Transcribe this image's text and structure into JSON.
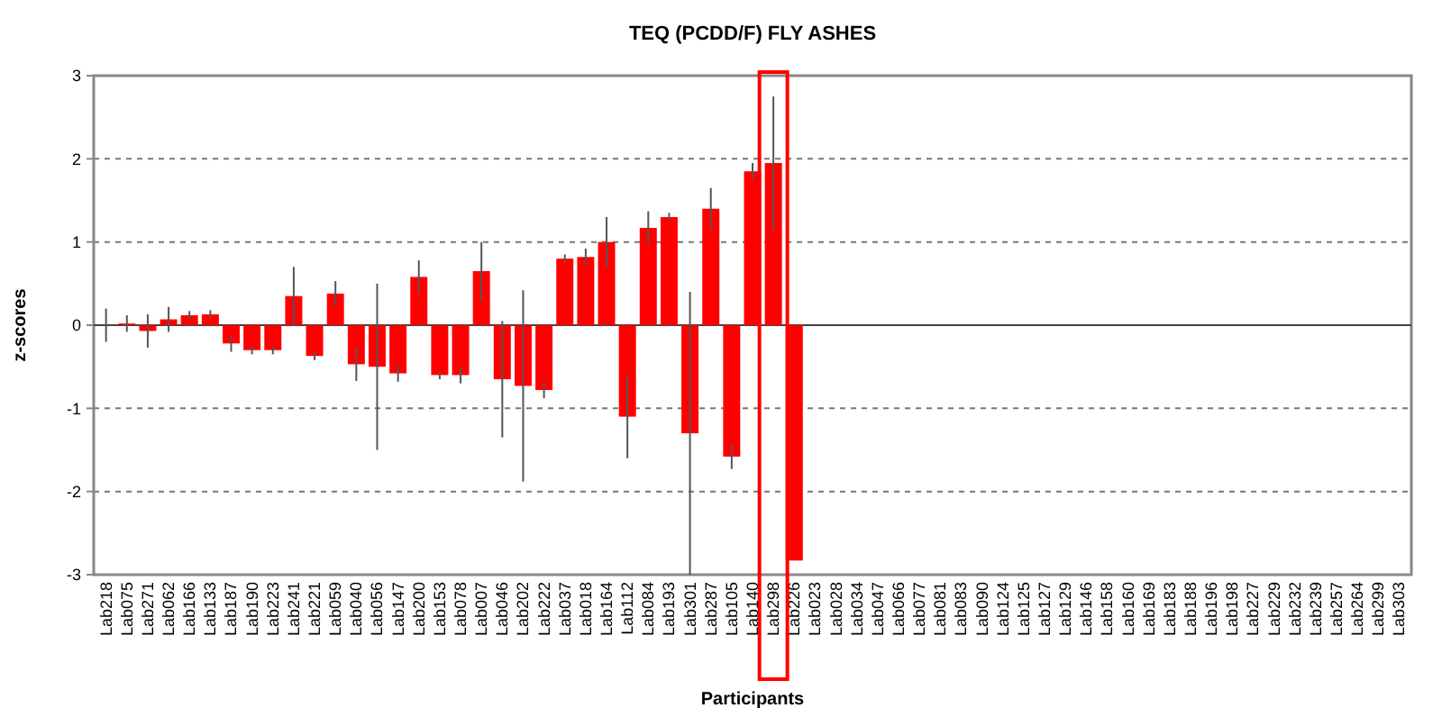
{
  "chart_data": {
    "type": "bar",
    "title": "TEQ (PCDD/F) FLY ASHES",
    "xlabel": "Participants",
    "ylabel": "z-scores",
    "categories": [
      "Lab218",
      "Lab075",
      "Lab271",
      "Lab062",
      "Lab166",
      "Lab133",
      "Lab187",
      "Lab190",
      "Lab223",
      "Lab241",
      "Lab221",
      "Lab059",
      "Lab040",
      "Lab056",
      "Lab147",
      "Lab200",
      "Lab153",
      "Lab078",
      "Lab007",
      "Lab046",
      "Lab202",
      "Lab222",
      "Lab037",
      "Lab018",
      "Lab164",
      "Lab112",
      "Lab084",
      "Lab193",
      "Lab301",
      "Lab287",
      "Lab105",
      "Lab140",
      "Lab298",
      "Lab226",
      "Lab023",
      "Lab028",
      "Lab034",
      "Lab047",
      "Lab066",
      "Lab077",
      "Lab081",
      "Lab083",
      "Lab090",
      "Lab124",
      "Lab125",
      "Lab127",
      "Lab129",
      "Lab146",
      "Lab158",
      "Lab160",
      "Lab169",
      "Lab183",
      "Lab188",
      "Lab196",
      "Lab198",
      "Lab227",
      "Lab229",
      "Lab232",
      "Lab239",
      "Lab257",
      "Lab264",
      "Lab299",
      "Lab303"
    ],
    "series": [
      {
        "color": "#ff0000",
        "values": [
          0.0,
          0.02,
          -0.07,
          0.07,
          0.12,
          0.13,
          -0.22,
          -0.3,
          -0.3,
          0.35,
          -0.37,
          0.38,
          -0.47,
          -0.5,
          -0.58,
          0.58,
          -0.6,
          -0.6,
          0.65,
          -0.65,
          -0.73,
          -0.78,
          0.8,
          0.82,
          1.0,
          -1.1,
          1.17,
          1.3,
          -1.3,
          1.4,
          -1.58,
          1.85,
          1.95,
          -2.83,
          null,
          null,
          null,
          null,
          null,
          null,
          null,
          null,
          null,
          null,
          null,
          null,
          null,
          null,
          null,
          null,
          null,
          null,
          null,
          null,
          null,
          null,
          null,
          null,
          null,
          null,
          null,
          null,
          null
        ],
        "errors": [
          0.2,
          0.1,
          0.2,
          0.15,
          0.05,
          0.05,
          0.1,
          0.05,
          0.05,
          0.35,
          0.05,
          0.15,
          0.2,
          1.0,
          0.1,
          0.2,
          0.05,
          0.1,
          0.35,
          0.7,
          1.15,
          0.1,
          0.05,
          0.1,
          0.3,
          0.5,
          0.2,
          0.05,
          1.7,
          0.25,
          0.15,
          0.1,
          0.8,
          null,
          null,
          null,
          null,
          null,
          null,
          null,
          null,
          null,
          null,
          null,
          null,
          null,
          null,
          null,
          null,
          null,
          null,
          null,
          null,
          null,
          null,
          null,
          null,
          null,
          null,
          null,
          null,
          null,
          null
        ]
      }
    ],
    "ylim": [
      -3,
      3
    ],
    "yticks": [
      -3,
      -2,
      -1,
      0,
      1,
      2,
      3
    ],
    "grid": "y"
  }
}
